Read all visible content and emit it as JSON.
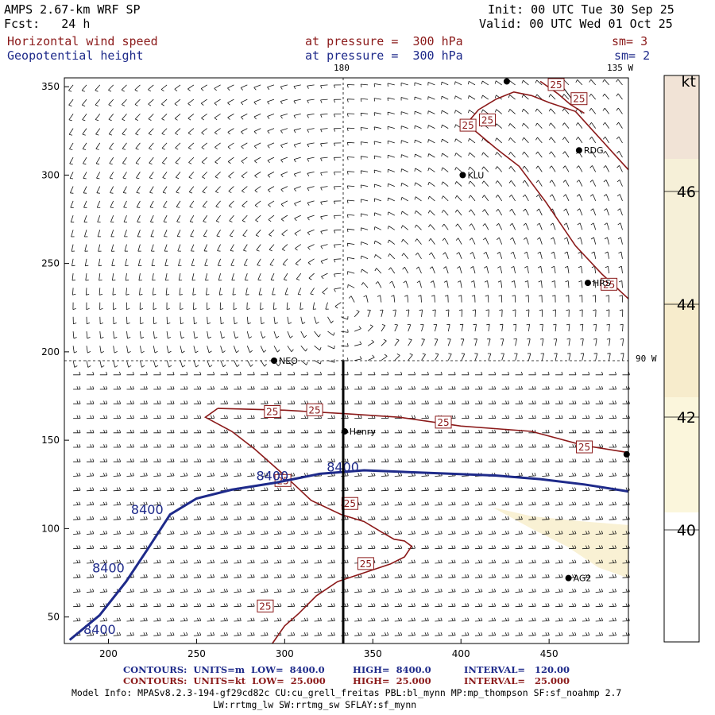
{
  "header": {
    "model": "AMPS 2.67-km WRF SP",
    "forecast": "Fcst:   24 h",
    "init": "Init: 00 UTC Tue 30 Sep 25",
    "valid": "Valid: 00 UTC Wed 01 Oct 25",
    "field1_name": "Horizontal wind speed",
    "field1_level": "at pressure =  300 hPa",
    "field1_sm": "sm= 3",
    "field2_name": "Geopotential height",
    "field2_level": "at pressure =  300 hPa",
    "field2_sm": "sm= 2"
  },
  "map_labels": {
    "lon_180": "180",
    "lon_135w": "135 W",
    "lon_90w": "90 W"
  },
  "stations": [
    {
      "name": "RDG",
      "x": 467,
      "y": 314
    },
    {
      "name": "KLU",
      "x": 401,
      "y": 300
    },
    {
      "name": "HRS",
      "x": 472,
      "y": 239
    },
    {
      "name": "NEO",
      "x": 294,
      "y": 195
    },
    {
      "name": "Henry",
      "x": 334,
      "y": 155
    },
    {
      "name": "AG2",
      "x": 461,
      "y": 72
    },
    {
      "name": "",
      "x": 426,
      "y": 353
    },
    {
      "name": "",
      "x": 494,
      "y": 142
    }
  ],
  "footer": {
    "contours_height_label": "CONTOURS:  UNITS=m  LOW=  8400.0",
    "contours_height_high": "HIGH=  8400.0",
    "contours_height_interval": "INTERVAL=   120.00",
    "contours_wind_label": "CONTOURS:  UNITS=kt  LOW=  25.000",
    "contours_wind_high": "HIGH=  25.000",
    "contours_wind_interval": "INTERVAL=   25.000",
    "model_info_line1": "Model Info: MPASv8.2.3-194-gf29cd82c CU:cu_grell_freitas PBL:bl_mynn MP:mp_thompson SF:sf_noahmp 2.7",
    "model_info_line2": "LW:rrtmg_lw SW:rrtmg_sw SFLAY:sf_mynn"
  },
  "colorbar": {
    "unit": "kt",
    "ticks": [
      40,
      42,
      44,
      46
    ],
    "colors": [
      "#ffffff",
      "#fbf6dc",
      "#f7eccc",
      "#f1e3d6"
    ]
  },
  "chart_data": {
    "type": "contour",
    "xlim": [
      175,
      495
    ],
    "ylim": [
      35,
      355
    ],
    "x_ticks": [
      200,
      250,
      300,
      350,
      400,
      450
    ],
    "y_ticks": [
      50,
      100,
      150,
      200,
      250,
      300,
      350
    ],
    "geopotential_height": {
      "units": "m",
      "level": 8400,
      "label": "8400",
      "line_color": "#1e2a8a",
      "path": [
        [
          178,
          37
        ],
        [
          195,
          51
        ],
        [
          210,
          70
        ],
        [
          222,
          88
        ],
        [
          235,
          108
        ],
        [
          250,
          117
        ],
        [
          270,
          122
        ],
        [
          295,
          126
        ],
        [
          320,
          131
        ],
        [
          345,
          133
        ],
        [
          370,
          132
        ],
        [
          395,
          131
        ],
        [
          420,
          130
        ],
        [
          445,
          128
        ],
        [
          470,
          125
        ],
        [
          495,
          121
        ]
      ],
      "labels": [
        {
          "x": 200,
          "y": 78
        },
        {
          "x": 222,
          "y": 111
        },
        {
          "x": 293,
          "y": 130
        },
        {
          "x": 333,
          "y": 135
        },
        {
          "x": 195,
          "y": 43
        }
      ]
    },
    "wind_speed": {
      "units": "kt",
      "level": 25,
      "label": "25",
      "line_color": "#8b1a1a",
      "paths": [
        [
          [
            262,
            168
          ],
          [
            300,
            167
          ],
          [
            335,
            165
          ],
          [
            365,
            163
          ],
          [
            400,
            158
          ],
          [
            440,
            155
          ],
          [
            470,
            147
          ],
          [
            495,
            143
          ]
        ],
        [
          [
            262,
            168
          ],
          [
            255,
            163
          ],
          [
            270,
            155
          ],
          [
            283,
            145
          ],
          [
            300,
            130
          ],
          [
            315,
            116
          ],
          [
            332,
            108
          ],
          [
            345,
            104
          ],
          [
            355,
            98
          ],
          [
            362,
            94
          ],
          [
            368,
            93
          ],
          [
            372,
            90
          ],
          [
            368,
            84
          ],
          [
            360,
            80
          ],
          [
            345,
            75
          ],
          [
            330,
            70
          ],
          [
            318,
            62
          ],
          [
            308,
            52
          ],
          [
            300,
            45
          ],
          [
            293,
            35
          ]
        ],
        [
          [
            404,
            330
          ],
          [
            410,
            337
          ],
          [
            420,
            343
          ],
          [
            430,
            347
          ],
          [
            440,
            345
          ],
          [
            450,
            341
          ],
          [
            465,
            336
          ],
          [
            475,
            325
          ],
          [
            495,
            303
          ]
        ],
        [
          [
            408,
            325
          ],
          [
            420,
            315
          ],
          [
            433,
            305
          ],
          [
            448,
            285
          ],
          [
            465,
            260
          ],
          [
            480,
            244
          ],
          [
            495,
            230
          ]
        ],
        [
          [
            445,
            353
          ],
          [
            455,
            346
          ],
          [
            462,
            340
          ],
          [
            470,
            335
          ]
        ]
      ],
      "labels": [
        {
          "x": 293,
          "y": 166
        },
        {
          "x": 317,
          "y": 167
        },
        {
          "x": 390,
          "y": 160
        },
        {
          "x": 470,
          "y": 146
        },
        {
          "x": 299,
          "y": 127
        },
        {
          "x": 337,
          "y": 114
        },
        {
          "x": 346,
          "y": 80
        },
        {
          "x": 289,
          "y": 56
        },
        {
          "x": 404,
          "y": 328
        },
        {
          "x": 415,
          "y": 331
        },
        {
          "x": 484,
          "y": 238
        },
        {
          "x": 454,
          "y": 351
        },
        {
          "x": 467,
          "y": 343
        }
      ]
    },
    "shaded_region": {
      "description": "speed >= 40 kt",
      "polygon": [
        [
          418,
          112
        ],
        [
          440,
          107
        ],
        [
          470,
          104
        ],
        [
          495,
          102
        ],
        [
          495,
          72
        ],
        [
          478,
          78
        ],
        [
          460,
          90
        ],
        [
          440,
          100
        ]
      ]
    }
  }
}
